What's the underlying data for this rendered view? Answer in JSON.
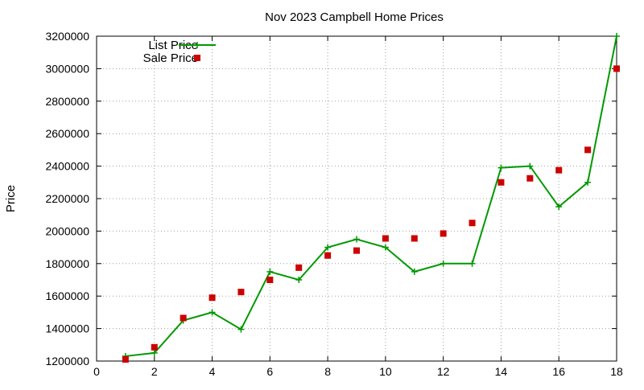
{
  "chart_data": {
    "type": "line",
    "title": "Nov 2023 Campbell Home Prices",
    "xlabel": "",
    "ylabel": "Price",
    "xlim": [
      0,
      18
    ],
    "ylim": [
      1200000,
      3200000
    ],
    "x_ticks": [
      0,
      2,
      4,
      6,
      8,
      10,
      12,
      14,
      16,
      18
    ],
    "x_tick_labels": [
      "0",
      "2",
      "4",
      "6",
      "8",
      "10",
      "12",
      "14",
      "16",
      "18"
    ],
    "y_ticks": [
      1200000,
      1400000,
      1600000,
      1800000,
      2000000,
      2200000,
      2400000,
      2600000,
      2800000,
      3000000,
      3200000
    ],
    "y_tick_labels": [
      "1200000",
      "1400000",
      "1600000",
      "1800000",
      "2000000",
      "2200000",
      "2400000",
      "2600000",
      "2800000",
      "3000000",
      "3200000"
    ],
    "grid": true,
    "legend_position": "top-left",
    "series": [
      {
        "name": "List Price",
        "style": "line-with-plus-markers",
        "color": "#009900",
        "points": [
          {
            "x": 1,
            "y": 1230000
          },
          {
            "x": 2,
            "y": 1250000
          },
          {
            "x": 3,
            "y": 1450000
          },
          {
            "x": 4,
            "y": 1500000
          },
          {
            "x": 5,
            "y": 1395000
          },
          {
            "x": 6,
            "y": 1750000
          },
          {
            "x": 7,
            "y": 1700000
          },
          {
            "x": 8,
            "y": 1900000
          },
          {
            "x": 9,
            "y": 1950000
          },
          {
            "x": 10,
            "y": 1900000
          },
          {
            "x": 11,
            "y": 1750000
          },
          {
            "x": 12,
            "y": 1800000
          },
          {
            "x": 13,
            "y": 1800000
          },
          {
            "x": 14,
            "y": 2390000
          },
          {
            "x": 15,
            "y": 2400000
          },
          {
            "x": 16,
            "y": 2150000
          },
          {
            "x": 17,
            "y": 2300000
          },
          {
            "x": 18,
            "y": 3200000
          }
        ]
      },
      {
        "name": "Sale Price",
        "style": "square-markers",
        "color": "#cc0000",
        "points": [
          {
            "x": 1,
            "y": 1210000
          },
          {
            "x": 2,
            "y": 1285000
          },
          {
            "x": 3,
            "y": 1465000
          },
          {
            "x": 4,
            "y": 1590000
          },
          {
            "x": 5,
            "y": 1625000
          },
          {
            "x": 6,
            "y": 1700000
          },
          {
            "x": 7,
            "y": 1775000
          },
          {
            "x": 8,
            "y": 1850000
          },
          {
            "x": 9,
            "y": 1880000
          },
          {
            "x": 10,
            "y": 1955000
          },
          {
            "x": 11,
            "y": 1955000
          },
          {
            "x": 12,
            "y": 1985000
          },
          {
            "x": 13,
            "y": 2050000
          },
          {
            "x": 14,
            "y": 2300000
          },
          {
            "x": 15,
            "y": 2325000
          },
          {
            "x": 16,
            "y": 2375000
          },
          {
            "x": 17,
            "y": 2500000
          },
          {
            "x": 18,
            "y": 3000000
          }
        ]
      }
    ]
  }
}
